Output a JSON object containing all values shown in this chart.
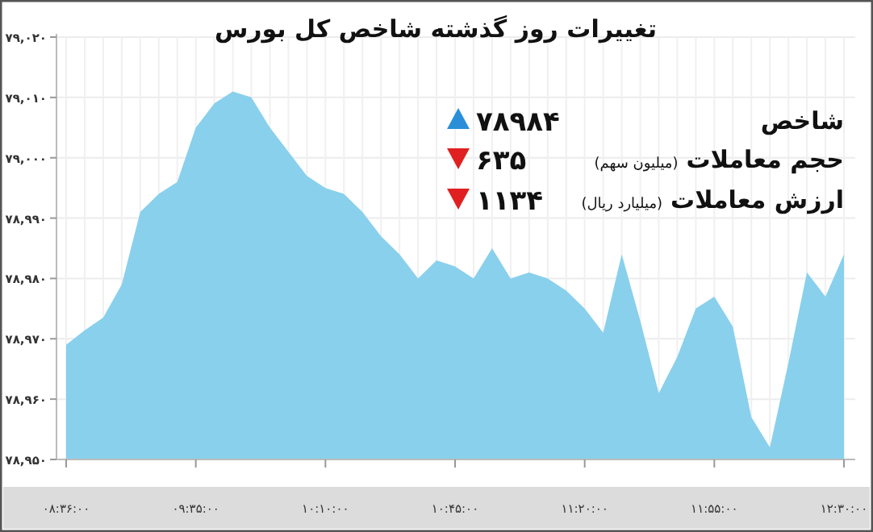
{
  "chart_data": {
    "type": "area",
    "title": "تغییرات روز گذشته شاخص کل بورس",
    "categories": [
      "۰۸:۳۶:۰۰",
      null,
      null,
      null,
      null,
      null,
      null,
      "۰۹:۳۵:۰۰",
      null,
      null,
      null,
      null,
      null,
      null,
      "۱۰:۱۰:۰۰",
      null,
      null,
      null,
      null,
      null,
      null,
      "۱۰:۴۵:۰۰",
      null,
      null,
      null,
      null,
      null,
      null,
      "۱۱:۲۰:۰۰",
      null,
      null,
      null,
      null,
      null,
      null,
      "۱۱:۵۵:۰۰",
      null,
      null,
      null,
      null,
      null,
      null,
      "۱۲:۳۰:۰۰"
    ],
    "series": [
      {
        "color": "#89d0ec",
        "values": [
          78969,
          78971.4,
          78973.5,
          78979,
          78991,
          78994,
          78996,
          79005,
          79009,
          79011,
          79010,
          79005,
          79001,
          78997,
          78995,
          78994,
          78991,
          78987,
          78984,
          78980,
          78983,
          78982,
          78980,
          78985,
          78980,
          78981,
          78980,
          78978,
          78975,
          78971,
          78984,
          78973,
          78961,
          78967,
          78975,
          78977,
          78972,
          78957,
          78952,
          78966,
          78981,
          78977,
          78984
        ]
      }
    ],
    "ylim": [
      78950,
      79020
    ],
    "yticks": [
      {
        "value": 78950,
        "label": "۷۸,۹۵۰"
      },
      {
        "value": 78960,
        "label": "۷۸,۹۶۰"
      },
      {
        "value": 78970,
        "label": "۷۸,۹۷۰"
      },
      {
        "value": 78980,
        "label": "۷۸,۹۸۰"
      },
      {
        "value": 78990,
        "label": "۷۸,۹۹۰"
      },
      {
        "value": 79000,
        "label": "۷۹,۰۰۰"
      },
      {
        "value": 79010,
        "label": "۷۹,۰۱۰"
      },
      {
        "value": 79020,
        "label": "۷۹,۰۲۰"
      }
    ],
    "grid": true,
    "annotations": [
      "شاخص",
      "۷۸۹۸۴",
      "حجم معاملات",
      "(میلیون سهم)",
      "۶۳۵",
      "ارزش معاملات",
      "(میلیارد ریال)",
      "۱۱۳۴"
    ]
  }
}
